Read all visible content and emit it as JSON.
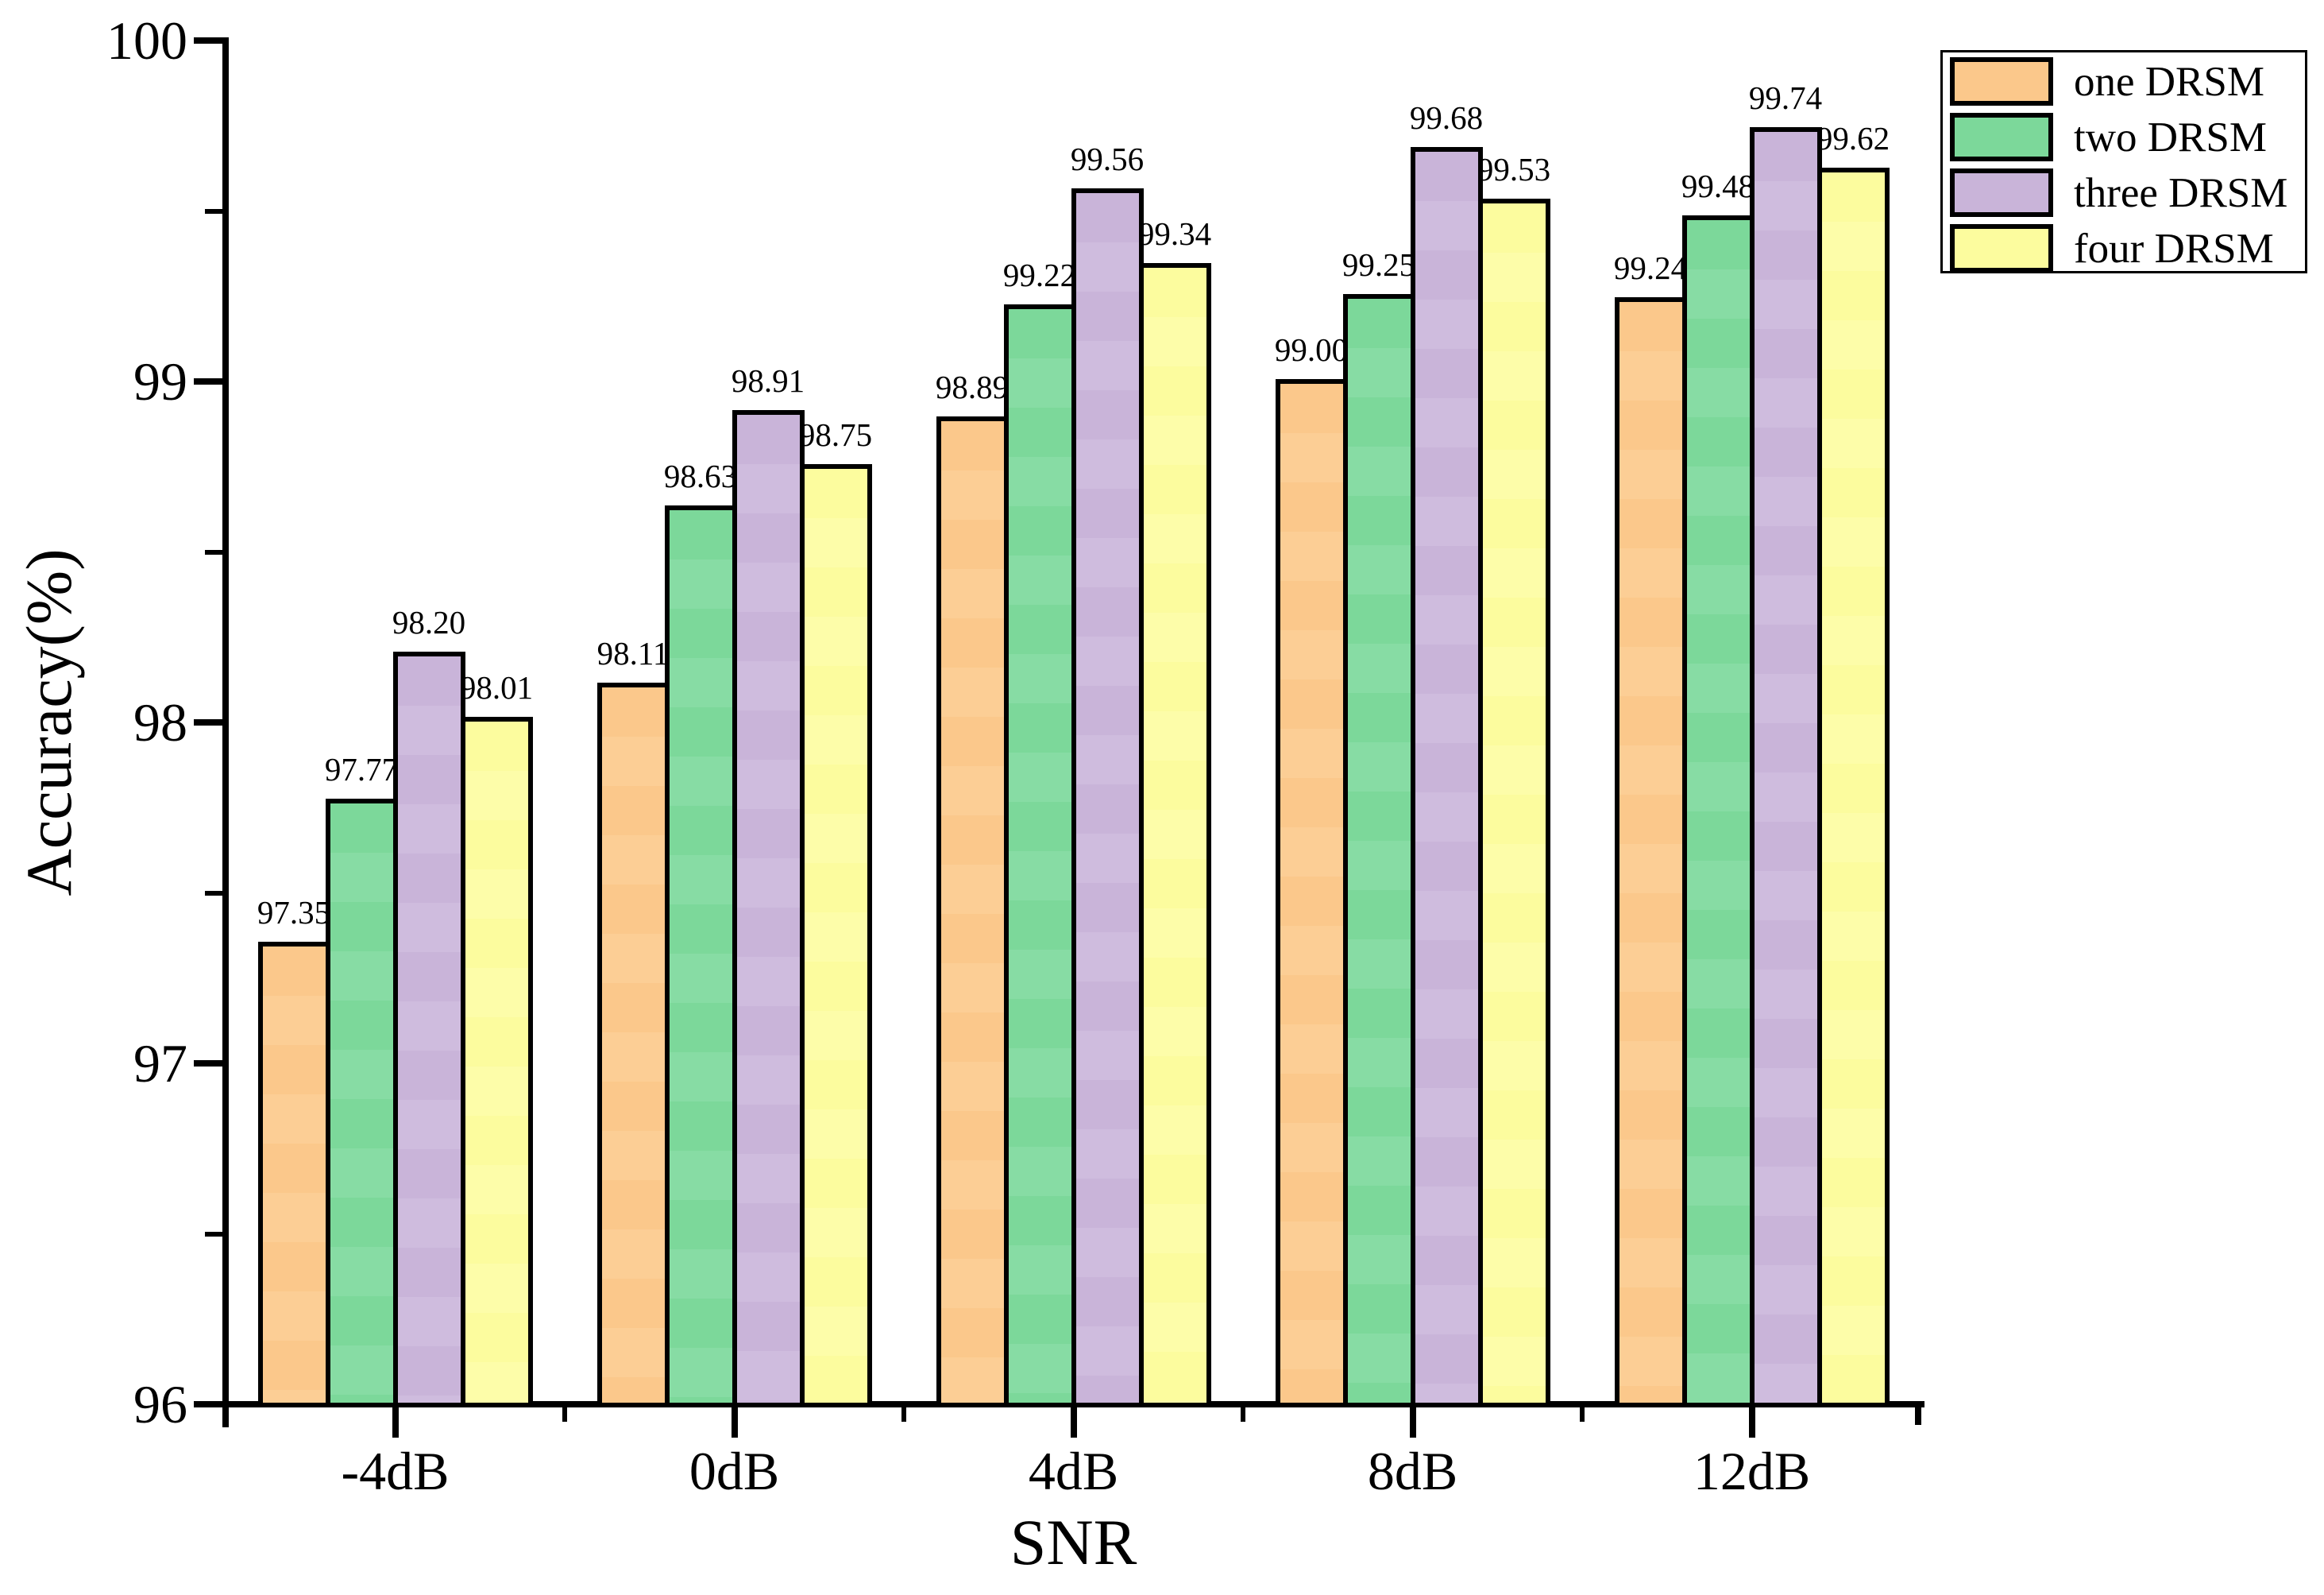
{
  "chart_data": {
    "type": "bar",
    "xlabel": "SNR",
    "ylabel": "Accuracy(%)",
    "categories": [
      "-4dB",
      "0dB",
      "4dB",
      "8dB",
      "12dB"
    ],
    "series": [
      {
        "name": "one DRSM",
        "color": "#FBC88B",
        "color_band": "#FCCE95",
        "values": [
          97.35,
          98.11,
          98.89,
          99.0,
          99.24
        ]
      },
      {
        "name": "two DRSM",
        "color": "#7CD89A",
        "color_band": "#87DCA4",
        "values": [
          97.77,
          98.63,
          99.22,
          99.25,
          99.48
        ]
      },
      {
        "name": "three DRSM",
        "color": "#C9B4D9",
        "color_band": "#CFBCDE",
        "values": [
          98.2,
          98.91,
          99.56,
          99.68,
          99.74
        ]
      },
      {
        "name": "four DRSM",
        "color": "#FCFC9E",
        "color_band": "#FDFDA9",
        "values": [
          98.01,
          98.75,
          99.34,
          99.53,
          99.62
        ]
      }
    ],
    "ylim": [
      96,
      100
    ],
    "y_major_step": 1,
    "y_minor_step": 0.5,
    "y_tick_labels": [
      "96",
      "97",
      "98",
      "99",
      "100"
    ],
    "value_label_decimals": 2,
    "bar_value_labels": [
      [
        "97.35",
        "98.11",
        "98.89",
        "99.00",
        "99.24"
      ],
      [
        "97.77",
        "98.63",
        "99.22",
        "99.25",
        "99.48"
      ],
      [
        "98.20",
        "98.91",
        "99.56",
        "99.68",
        "99.74"
      ],
      [
        "98.01",
        "98.75",
        "99.34",
        "99.53",
        "99.62"
      ]
    ],
    "legend_position": "top-right",
    "grid": false,
    "axis_color": "#000000",
    "bar_border_color": "#000000"
  }
}
